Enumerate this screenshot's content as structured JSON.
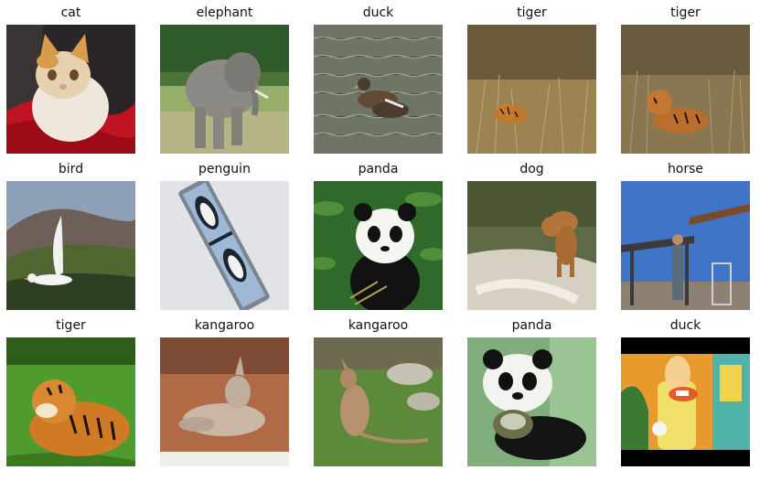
{
  "images": [
    {
      "label": "cat"
    },
    {
      "label": "elephant"
    },
    {
      "label": "duck"
    },
    {
      "label": "tiger"
    },
    {
      "label": "tiger"
    },
    {
      "label": "bird"
    },
    {
      "label": "penguin"
    },
    {
      "label": "panda"
    },
    {
      "label": "dog"
    },
    {
      "label": "horse"
    },
    {
      "label": "tiger"
    },
    {
      "label": "kangaroo"
    },
    {
      "label": "kangaroo"
    },
    {
      "label": "panda"
    },
    {
      "label": "duck"
    }
  ]
}
